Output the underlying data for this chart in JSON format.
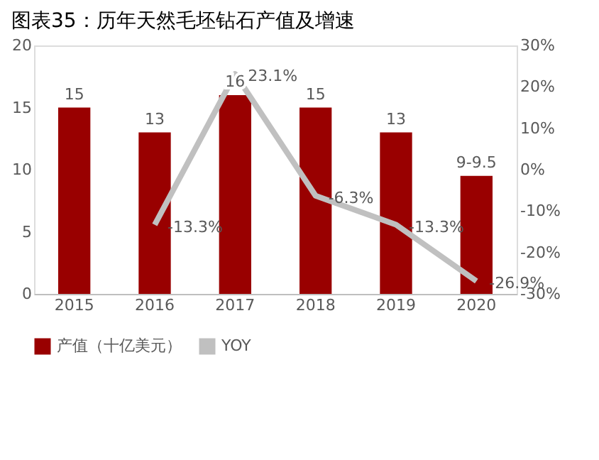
{
  "chart_data": {
    "type": "bar",
    "title": "图表35：历年天然毛坯钻石产值及增速",
    "categories": [
      "2015",
      "2016",
      "2017",
      "2018",
      "2019",
      "2020"
    ],
    "series": [
      {
        "name": "产值（十亿美元）",
        "color": "#990000",
        "values": [
          15,
          13,
          16,
          15,
          13,
          9.5
        ],
        "value_labels": [
          "15",
          "13",
          "16",
          "15",
          "13",
          "9-9.5"
        ]
      },
      {
        "name": "YOY",
        "type": "line",
        "axis": "y2",
        "color": "#c0c0c0",
        "values": [
          null,
          -13.3,
          23.1,
          -6.3,
          -13.3,
          -26.9
        ],
        "value_labels": [
          null,
          "-13.3%",
          "23.1%",
          "-6.3%",
          "-13.3%",
          "-26.9%"
        ]
      }
    ],
    "ylim": [
      0,
      20
    ],
    "yticks": [
      0,
      5,
      10,
      15,
      20
    ],
    "y2lim": [
      -30,
      30
    ],
    "y2ticks": [
      {
        "value": -30,
        "label": "-30%"
      },
      {
        "value": -20,
        "label": "-20%"
      },
      {
        "value": -10,
        "label": "-10%"
      },
      {
        "value": 0,
        "label": "0%"
      },
      {
        "value": 10,
        "label": "10%"
      },
      {
        "value": 20,
        "label": "20%"
      },
      {
        "value": 30,
        "label": "30%"
      }
    ],
    "grid": false,
    "legend": "bottom",
    "marker": "none",
    "line_style": "solid"
  }
}
